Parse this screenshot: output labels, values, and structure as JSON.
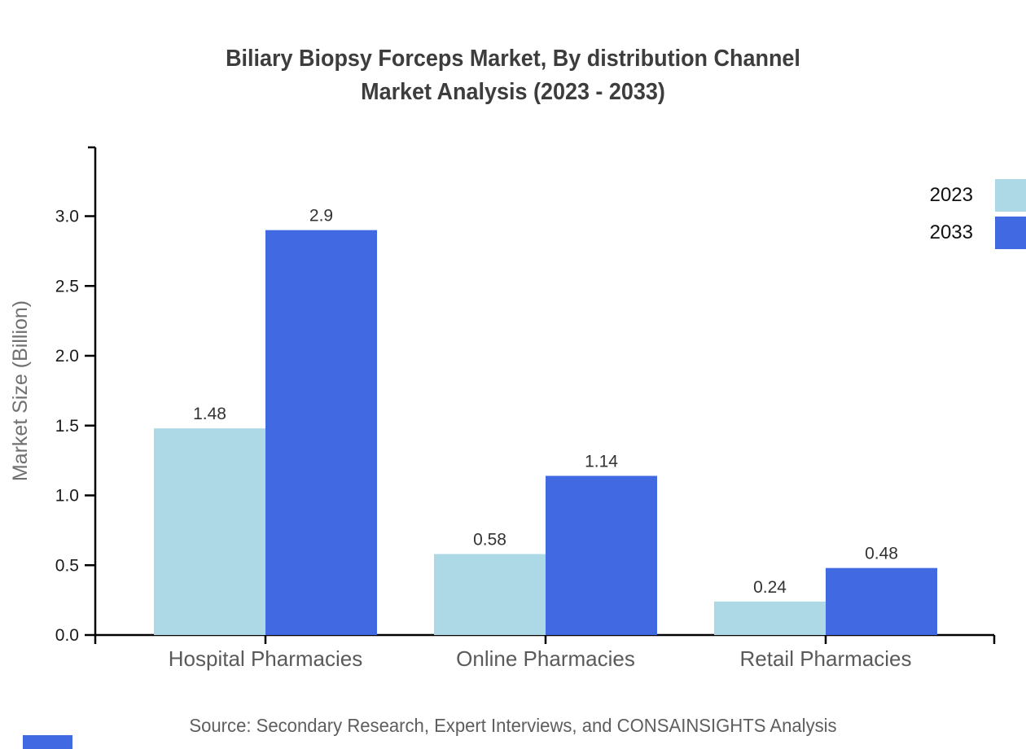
{
  "title": {
    "line1": "Biliary Biopsy Forceps Market, By distribution Channel",
    "line2": "Market Analysis (2023 - 2033)"
  },
  "source": "Source: Secondary Research, Expert Interviews, and CONSAINSIGHTS Analysis",
  "colors": {
    "series_2023": "#ADD8E6",
    "series_2033": "#4169E1",
    "axis": "#000000",
    "tick_label": "#1a1a1a",
    "category_label": "#5a5a5a",
    "value_label": "#333333",
    "y_axis_label": "#707070",
    "title": "#3d3d3d",
    "source": "#5e5e5e",
    "brand_mark": "#4169E1"
  },
  "chart_data": {
    "type": "bar",
    "categories": [
      "Hospital Pharmacies",
      "Online Pharmacies",
      "Retail Pharmacies"
    ],
    "series": [
      {
        "name": "2023",
        "values": [
          1.48,
          0.58,
          0.24
        ],
        "labels": [
          "1.48",
          "0.58",
          "0.24"
        ],
        "color": "#ADD8E6"
      },
      {
        "name": "2033",
        "values": [
          2.9,
          1.14,
          0.48
        ],
        "labels": [
          "2.9",
          "1.14",
          "0.48"
        ],
        "color": "#4169E1"
      }
    ],
    "title": "Biliary Biopsy Forceps Market, By distribution Channel Market Analysis (2023 - 2033)",
    "xlabel": "",
    "ylabel": "Market Size (Billion)",
    "ylim": [
      0,
      3.5
    ],
    "yticks": [
      "0.0",
      "0.5",
      "1.0",
      "1.5",
      "2.0",
      "2.5",
      "3.0"
    ],
    "grid": false,
    "legend_position": "top-right"
  }
}
